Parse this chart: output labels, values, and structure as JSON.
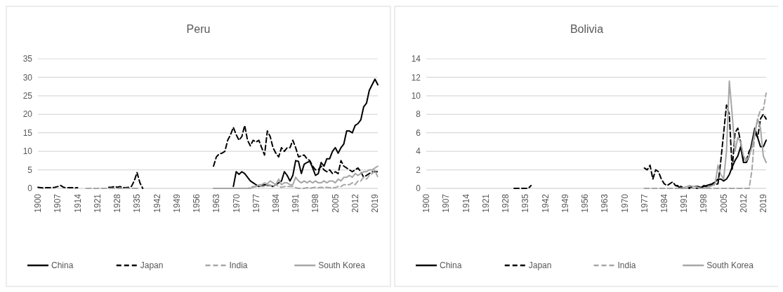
{
  "chart_data": [
    {
      "type": "line",
      "title": "Peru",
      "xlim": [
        1900,
        2020
      ],
      "xticks": [
        1900,
        1907,
        1914,
        1921,
        1928,
        1935,
        1942,
        1949,
        1956,
        1963,
        1970,
        1977,
        1984,
        1991,
        1998,
        2005,
        2012,
        2019
      ],
      "ylim": [
        0,
        35
      ],
      "yticks": [
        0,
        5,
        10,
        15,
        20,
        25,
        30,
        35
      ],
      "grid": "y",
      "legend": "bottom",
      "series": [
        {
          "name": "China",
          "color": "#000000",
          "line_style": "solid",
          "x": [
            1969,
            1970,
            1971,
            1972,
            1973,
            1974,
            1975,
            1976,
            1977,
            1978,
            1979,
            1980,
            1981,
            1982,
            1983,
            1984,
            1985,
            1986,
            1987,
            1988,
            1989,
            1990,
            1991,
            1992,
            1993,
            1994,
            1995,
            1996,
            1997,
            1998,
            1999,
            2000,
            2001,
            2002,
            2003,
            2004,
            2005,
            2006,
            2007,
            2008,
            2009,
            2010,
            2011,
            2012,
            2013,
            2014,
            2015,
            2016,
            2017,
            2018,
            2019,
            2020
          ],
          "values": [
            0.5,
            4.5,
            3.8,
            4.5,
            4,
            3,
            2,
            1.5,
            1,
            0.5,
            0.7,
            1,
            0.8,
            0.8,
            0.5,
            1,
            1.5,
            2,
            4.5,
            3.5,
            2,
            3.5,
            7.5,
            7.3,
            4,
            6.5,
            7,
            7.3,
            5.5,
            3.5,
            4,
            7,
            6,
            8,
            8,
            10,
            11,
            9.5,
            11,
            12,
            15.5,
            15.5,
            15,
            17,
            17.5,
            18.5,
            22,
            23,
            26.5,
            28,
            29.5,
            28
          ]
        },
        {
          "name": "Japan",
          "color": "#000000",
          "line_style": "dashed",
          "x": [
            1900,
            1901,
            1902,
            1903,
            1904,
            1905,
            1906,
            1907,
            1908,
            1909,
            1910,
            1911,
            1912,
            1913,
            1914,
            1915,
            1925,
            1926,
            1927,
            1928,
            1929,
            1930,
            1931,
            1932,
            1933,
            1934,
            1935,
            1936,
            1937,
            1950,
            1962,
            1963,
            1964,
            1965,
            1966,
            1967,
            1968,
            1969,
            1970,
            1971,
            1972,
            1973,
            1974,
            1975,
            1976,
            1977,
            1978,
            1979,
            1980,
            1981,
            1982,
            1983,
            1984,
            1985,
            1986,
            1987,
            1988,
            1989,
            1990,
            1991,
            1992,
            1993,
            1994,
            1995,
            1996,
            1997,
            1998,
            1999,
            2000,
            2001,
            2002,
            2003,
            2004,
            2005,
            2006,
            2007,
            2008,
            2009,
            2010,
            2011,
            2012,
            2013,
            2014,
            2015,
            2016,
            2017,
            2018,
            2019,
            2020
          ],
          "values": [
            0.3,
            0.2,
            0.1,
            0.2,
            0.2,
            0.2,
            0.3,
            0.5,
            0.8,
            0.3,
            0.2,
            0.2,
            0.2,
            0.1,
            0.2,
            null,
            0.3,
            0.3,
            0.5,
            0.3,
            0.5,
            0.2,
            0.2,
            0.3,
            0.5,
            2,
            4.3,
            1.5,
            0,
            null,
            6,
            8.5,
            9.3,
            9.5,
            10,
            13,
            14.5,
            16.5,
            14.5,
            13,
            14,
            17,
            13,
            11.5,
            13,
            12.5,
            13,
            11,
            9,
            15.5,
            14,
            11,
            9.5,
            8.5,
            11,
            10,
            11,
            11,
            13,
            11,
            8.5,
            8.8,
            9,
            8,
            7.5,
            6,
            5,
            5,
            6,
            5,
            4.5,
            5,
            4,
            4.5,
            4,
            7.5,
            6,
            5.5,
            5,
            4.5,
            5,
            5.5,
            4.5,
            3,
            3.5,
            4,
            4.5,
            4.5,
            4.5
          ]
        },
        {
          "name": "India",
          "color": "#a6a6a6",
          "line_style": "dashed",
          "x": [
            1917,
            1918,
            1919,
            1920,
            1921,
            1922,
            1923,
            1924,
            1925,
            1926,
            1927,
            1928,
            1929,
            1930,
            1931,
            1932,
            1933,
            1934,
            1935,
            1936,
            1950,
            1962,
            1963,
            1964,
            1965,
            1966,
            1967,
            1968,
            1969,
            1970,
            1971,
            1972,
            1973,
            1974,
            1975,
            1976,
            1977,
            1978,
            1979,
            1980,
            1981,
            1982,
            1983,
            1984,
            1985,
            1986,
            1987,
            1988,
            1989,
            1990,
            1991,
            1992,
            1993,
            1994,
            1995,
            1996,
            1997,
            1998,
            1999,
            2000,
            2001,
            2002,
            2003,
            2004,
            2005,
            2006,
            2007,
            2008,
            2009,
            2010,
            2011,
            2012,
            2013,
            2014,
            2015,
            2016,
            2017,
            2018,
            2019,
            2020
          ],
          "values": [
            0,
            0,
            0,
            0,
            0,
            0,
            0,
            0,
            0,
            0,
            0,
            0,
            0,
            0,
            0,
            0,
            0,
            0,
            0,
            0,
            null,
            0,
            0,
            0,
            0,
            0,
            0,
            0,
            0,
            0,
            0,
            0,
            0,
            0,
            0.2,
            0.5,
            0.5,
            0.8,
            0.5,
            0.5,
            1,
            0.8,
            0.5,
            1,
            0.5,
            0.3,
            0.5,
            0.5,
            0.5,
            0.5,
            0.2,
            0,
            0,
            0,
            0.2,
            0,
            0.2,
            0.3,
            0.2,
            0.3,
            0.2,
            0.3,
            0.2,
            0.2,
            0.2,
            0.5,
            0.5,
            1,
            1,
            1,
            1.5,
            1,
            2,
            2,
            3,
            2.5,
            3.5,
            4,
            5,
            3
          ]
        },
        {
          "name": "South Korea",
          "color": "#a6a6a6",
          "line_style": "solid",
          "x": [
            1962,
            1963,
            1964,
            1965,
            1966,
            1967,
            1968,
            1969,
            1970,
            1971,
            1972,
            1973,
            1974,
            1975,
            1976,
            1977,
            1978,
            1979,
            1980,
            1981,
            1982,
            1983,
            1984,
            1985,
            1986,
            1987,
            1988,
            1989,
            1990,
            1991,
            1992,
            1993,
            1994,
            1995,
            1996,
            1997,
            1998,
            1999,
            2000,
            2001,
            2002,
            2003,
            2004,
            2005,
            2006,
            2007,
            2008,
            2009,
            2010,
            2011,
            2012,
            2013,
            2014,
            2015,
            2016,
            2017,
            2018,
            2019,
            2020
          ],
          "values": [
            0,
            0,
            0,
            0,
            0,
            0,
            0,
            0,
            0,
            0,
            0,
            0,
            0,
            0,
            0.3,
            0.5,
            1,
            1,
            1.5,
            1.2,
            2,
            1.5,
            1,
            2.5,
            1,
            1.5,
            1.5,
            1,
            1,
            3,
            2,
            1.5,
            2,
            1.5,
            2,
            1.5,
            2,
            1.5,
            1.5,
            2,
            1.5,
            2,
            2,
            1.5,
            2.5,
            2,
            3,
            3,
            3.5,
            3,
            4,
            3.5,
            4,
            4.5,
            4.5,
            5,
            5,
            5.5,
            6
          ]
        }
      ]
    },
    {
      "type": "line",
      "title": "Bolivia",
      "xlim": [
        1900,
        2020
      ],
      "xticks": [
        1900,
        1907,
        1914,
        1921,
        1928,
        1935,
        1942,
        1949,
        1956,
        1963,
        1970,
        1977,
        1984,
        1991,
        1998,
        2005,
        2012,
        2019
      ],
      "ylim": [
        0,
        14
      ],
      "yticks": [
        0,
        2,
        4,
        6,
        8,
        10,
        12,
        14
      ],
      "grid": "y",
      "legend": "bottom",
      "series": [
        {
          "name": "China",
          "color": "#000000",
          "line_style": "solid",
          "x": [
            1988,
            1989,
            1990,
            1991,
            1992,
            1993,
            1994,
            1995,
            1996,
            1997,
            1998,
            1999,
            2000,
            2001,
            2002,
            2003,
            2004,
            2005,
            2006,
            2007,
            2008,
            2009,
            2010,
            2011,
            2012,
            2013,
            2014,
            2015,
            2016,
            2017,
            2018,
            2019,
            2020
          ],
          "values": [
            0.3,
            0.2,
            0,
            0,
            0,
            0,
            0,
            0,
            0,
            0.1,
            0.2,
            0.3,
            0.4,
            0.5,
            0.7,
            1,
            1,
            0.8,
            1,
            1.5,
            2.3,
            3,
            3.5,
            4.5,
            2.8,
            2.8,
            3.5,
            5,
            6.5,
            5.5,
            4.5,
            4.5,
            5.2
          ]
        },
        {
          "name": "Japan",
          "color": "#000000",
          "line_style": "dashed",
          "x": [
            1931,
            1932,
            1933,
            1934,
            1935,
            1936,
            1937,
            1950,
            1977,
            1978,
            1979,
            1980,
            1981,
            1982,
            1983,
            1984,
            1985,
            1986,
            1987,
            1988,
            1989,
            1990,
            1991,
            1992,
            1993,
            1994,
            1995,
            1996,
            1997,
            1998,
            1999,
            2000,
            2001,
            2002,
            2003,
            2004,
            2005,
            2006,
            2007,
            2008,
            2009,
            2010,
            2011,
            2012,
            2013,
            2014,
            2015,
            2016,
            2017,
            2018,
            2019,
            2020
          ],
          "values": [
            0,
            0,
            0,
            0,
            0,
            0,
            0.3,
            null,
            2.2,
            2,
            2.5,
            1,
            2,
            1.8,
            1,
            0.5,
            0.3,
            0.5,
            0.7,
            0.3,
            0.3,
            0.2,
            0,
            0,
            0.1,
            0.2,
            0.2,
            0.2,
            0.1,
            0.3,
            0.2,
            0.2,
            0.4,
            0.4,
            0.5,
            3,
            6,
            9,
            8,
            2,
            6,
            6.5,
            5,
            3,
            3,
            4,
            4.5,
            6,
            5.5,
            7.5,
            8,
            7.5
          ]
        },
        {
          "name": "India",
          "color": "#a6a6a6",
          "line_style": "dashed",
          "x": [
            1977,
            1978,
            1979,
            1980,
            1981,
            1982,
            1983,
            1984,
            1985,
            1986,
            1987,
            1988,
            1989,
            1990,
            1991,
            1992,
            1993,
            1994,
            1995,
            1996,
            1997,
            1998,
            1999,
            2000,
            2001,
            2002,
            2003,
            2004,
            2005,
            2006,
            2007,
            2008,
            2009,
            2010,
            2011,
            2012,
            2013,
            2014,
            2015,
            2016,
            2017,
            2018,
            2019,
            2020
          ],
          "values": [
            0,
            0,
            0,
            0,
            0,
            0,
            0,
            0,
            0,
            0,
            0,
            0,
            0,
            0,
            0,
            0,
            0,
            0,
            0,
            0,
            0,
            0,
            0,
            0,
            0,
            0,
            0,
            0,
            0,
            0,
            0,
            0,
            0,
            0,
            0,
            0,
            0,
            0,
            2,
            6,
            7.5,
            8.5,
            8.5,
            10.3
          ]
        },
        {
          "name": "South Korea",
          "color": "#a6a6a6",
          "line_style": "solid",
          "x": [
            1990,
            1991,
            1992,
            1993,
            1994,
            1995,
            1996,
            1997,
            1998,
            1999,
            2000,
            2001,
            2002,
            2003,
            2004,
            2005,
            2006,
            2007,
            2008,
            2009,
            2010,
            2011,
            2012,
            2013,
            2014,
            2015,
            2016,
            2017,
            2018,
            2019,
            2020
          ],
          "values": [
            0,
            0.1,
            0.2,
            0.3,
            0.2,
            0.2,
            0.1,
            0,
            0,
            0.1,
            0.2,
            0.3,
            0.5,
            2.5,
            1.5,
            1,
            4,
            11.6,
            8,
            4,
            5.5,
            5,
            3.5,
            3,
            3.5,
            4.5,
            6,
            7.5,
            6.5,
            3.5,
            2.8
          ]
        }
      ]
    }
  ]
}
